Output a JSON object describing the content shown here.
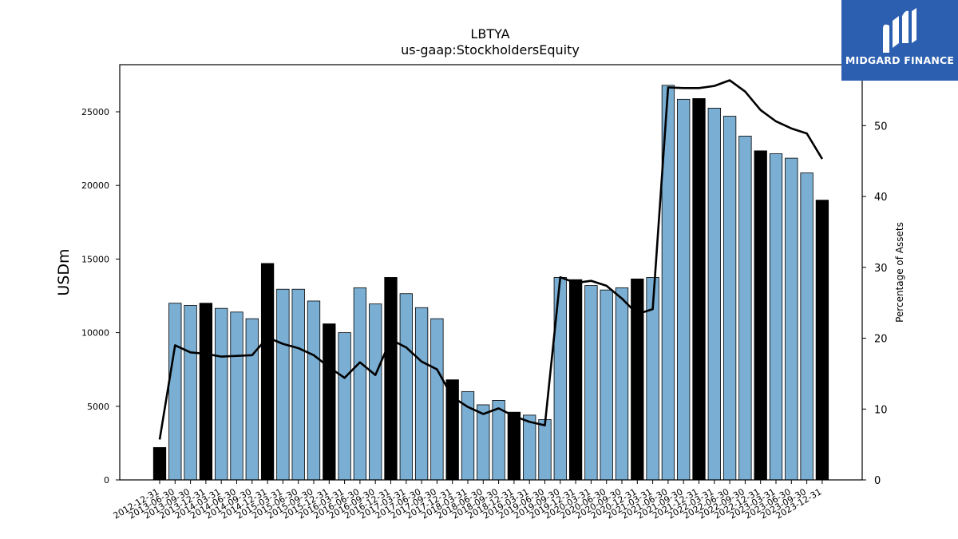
{
  "chart_data": {
    "type": "bar",
    "title": "LBTYA",
    "subtitle": "us-gaap:StockholdersEquity",
    "ylabel": "USDm",
    "y2label": "Percentage of Assets",
    "ylim": [
      0,
      28200
    ],
    "y2lim": [
      0,
      58.6
    ],
    "yticks": [
      0,
      5000,
      10000,
      15000,
      20000,
      25000
    ],
    "y2ticks": [
      0,
      10,
      20,
      30,
      40,
      50
    ],
    "categories": [
      "2012-12-31",
      "2013-06-30",
      "2013-09-30",
      "2013-12-31",
      "2014-03-31",
      "2014-06-30",
      "2014-09-30",
      "2014-12-31",
      "2015-03-31",
      "2015-06-30",
      "2015-09-30",
      "2015-12-31",
      "2016-03-31",
      "2016-06-30",
      "2016-09-30",
      "2016-12-31",
      "2017-03-31",
      "2017-06-30",
      "2017-09-30",
      "2017-12-31",
      "2018-03-31",
      "2018-06-30",
      "2018-09-30",
      "2018-12-31",
      "2019-03-31",
      "2019-06-30",
      "2019-09-30",
      "2019-12-31",
      "2020-03-31",
      "2020-06-30",
      "2020-09-30",
      "2020-12-31",
      "2021-03-31",
      "2021-06-30",
      "2021-09-30",
      "2021-12-31",
      "2022-03-31",
      "2022-06-30",
      "2022-09-30",
      "2022-12-31",
      "2023-03-31",
      "2023-06-30",
      "2023-09-30",
      "2023-12-31"
    ],
    "series": [
      {
        "type": "bar",
        "values": [
          2200,
          12000,
          11850,
          12000,
          11650,
          11400,
          10950,
          14700,
          12950,
          12950,
          12150,
          10600,
          10000,
          13050,
          11950,
          13750,
          12650,
          11700,
          10950,
          6800,
          6000,
          5100,
          5400,
          4600,
          4400,
          4100,
          13750,
          13600,
          13200,
          12900,
          13050,
          13650,
          13750,
          26800,
          25850,
          25900,
          25250,
          24700,
          23350,
          22350,
          22150,
          21850,
          20850,
          19000
        ]
      },
      {
        "type": "line",
        "axis": "right",
        "values": [
          5.7,
          19.0,
          18.0,
          17.8,
          17.4,
          17.5,
          17.6,
          20.1,
          19.2,
          18.6,
          17.6,
          15.9,
          14.4,
          16.6,
          14.8,
          19.8,
          18.7,
          16.7,
          15.6,
          11.7,
          10.3,
          9.3,
          10.1,
          9.0,
          8.2,
          7.7,
          28.6,
          27.8,
          28.1,
          27.4,
          25.6,
          23.4,
          24.1,
          55.4,
          55.3,
          55.3,
          55.6,
          56.4,
          54.8,
          52.2,
          50.6,
          49.6,
          48.9,
          45.3
        ]
      }
    ],
    "bar_colors": {
      "quarter": "#7aaed3",
      "year_end": "#000000"
    },
    "line_color": "#000000",
    "grid": false
  },
  "logo": {
    "text": "MIDGARD FINANCE",
    "background": "#2c5fb0"
  }
}
